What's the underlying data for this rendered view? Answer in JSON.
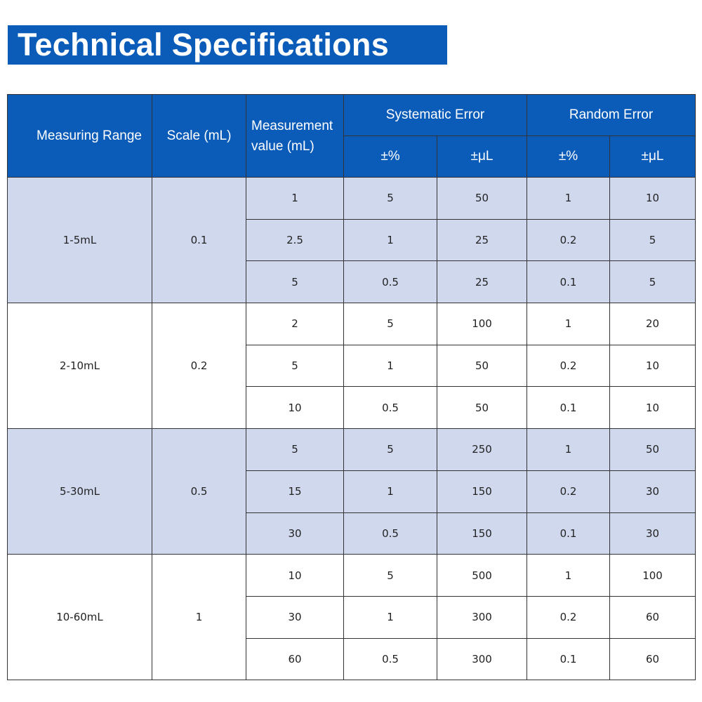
{
  "title": "Technical Specifications",
  "header": {
    "measuring_range": "Measuring Range",
    "scale": "Scale (mL)",
    "measurement_value": "Measurement value (mL)",
    "systematic_error": "Systematic Error",
    "random_error": "Random Error",
    "pct": "±%",
    "ul": "±μL"
  },
  "colors": {
    "header_bg": "#0b5cb9",
    "shade_bg": "#d0d8ee"
  },
  "groups": [
    {
      "range": "1-5mL",
      "scale": "0.1",
      "rows": [
        [
          "1",
          "5",
          "50",
          "1",
          "10"
        ],
        [
          "2.5",
          "1",
          "25",
          "0.2",
          "5"
        ],
        [
          "5",
          "0.5",
          "25",
          "0.1",
          "5"
        ]
      ]
    },
    {
      "range": "2-10mL",
      "scale": "0.2",
      "rows": [
        [
          "2",
          "5",
          "100",
          "1",
          "20"
        ],
        [
          "5",
          "1",
          "50",
          "0.2",
          "10"
        ],
        [
          "10",
          "0.5",
          "50",
          "0.1",
          "10"
        ]
      ]
    },
    {
      "range": "5-30mL",
      "scale": "0.5",
      "rows": [
        [
          "5",
          "5",
          "250",
          "1",
          "50"
        ],
        [
          "15",
          "1",
          "150",
          "0.2",
          "30"
        ],
        [
          "30",
          "0.5",
          "150",
          "0.1",
          "30"
        ]
      ]
    },
    {
      "range": "10-60mL",
      "scale": "1",
      "rows": [
        [
          "10",
          "5",
          "500",
          "1",
          "100"
        ],
        [
          "30",
          "1",
          "300",
          "0.2",
          "60"
        ],
        [
          "60",
          "0.5",
          "300",
          "0.1",
          "60"
        ]
      ]
    }
  ]
}
